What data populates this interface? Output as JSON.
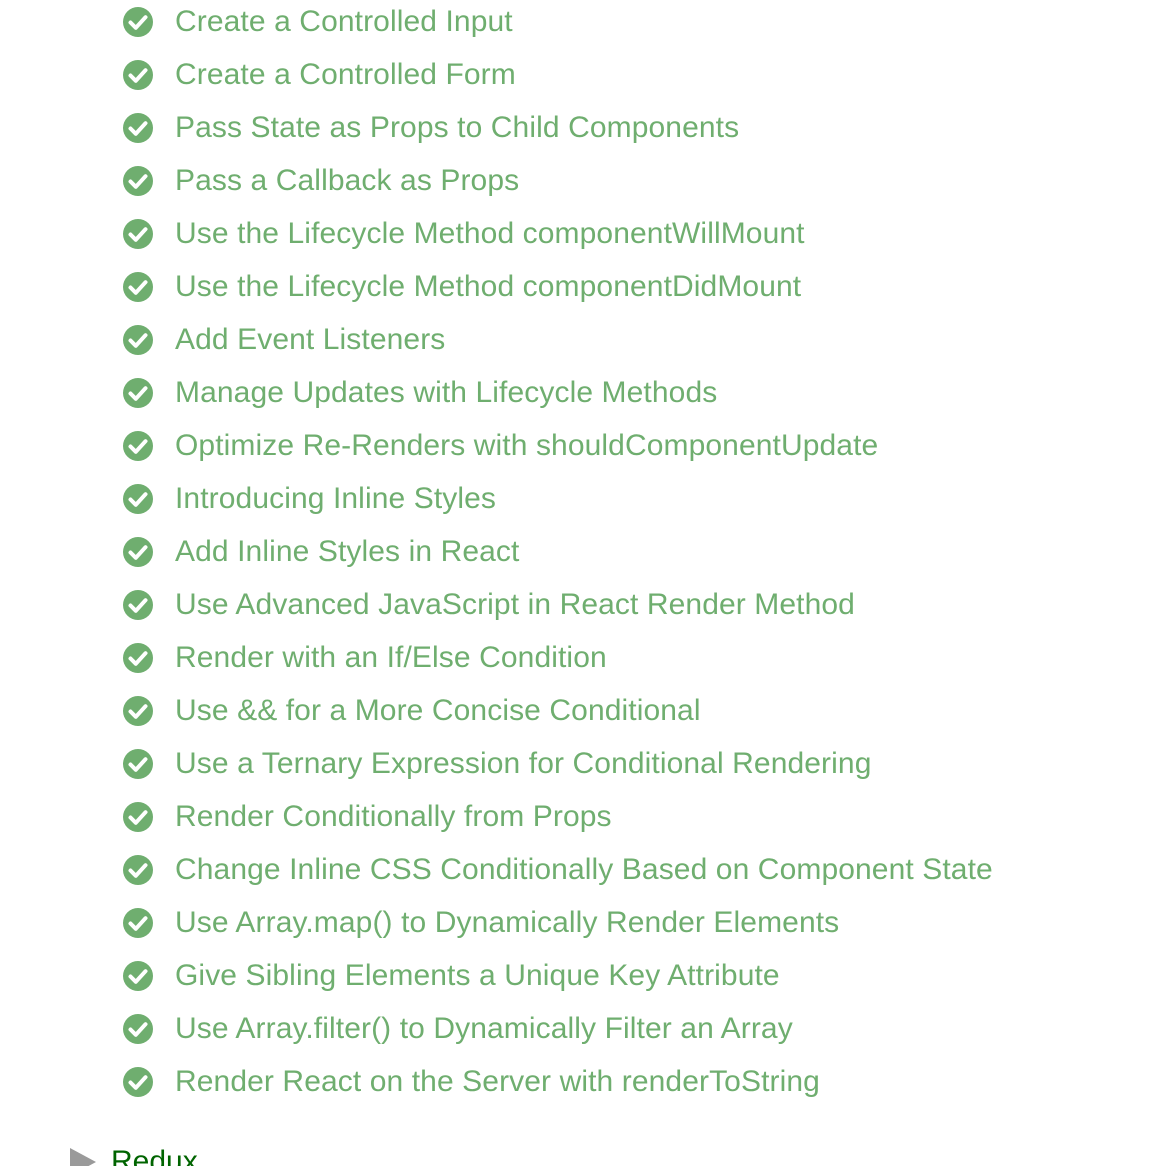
{
  "accent_color": "#6fae6f",
  "section_color": "#006400",
  "lessons": [
    {
      "label": "Create a Controlled Input",
      "icon": "check-circle-icon"
    },
    {
      "label": "Create a Controlled Form",
      "icon": "check-circle-icon"
    },
    {
      "label": "Pass State as Props to Child Components",
      "icon": "check-circle-icon"
    },
    {
      "label": "Pass a Callback as Props",
      "icon": "check-circle-icon"
    },
    {
      "label": "Use the Lifecycle Method componentWillMount",
      "icon": "check-circle-icon"
    },
    {
      "label": "Use the Lifecycle Method componentDidMount",
      "icon": "check-circle-icon"
    },
    {
      "label": "Add Event Listeners",
      "icon": "check-circle-icon"
    },
    {
      "label": "Manage Updates with Lifecycle Methods",
      "icon": "check-circle-icon"
    },
    {
      "label": "Optimize Re-Renders with shouldComponentUpdate",
      "icon": "check-circle-icon"
    },
    {
      "label": "Introducing Inline Styles",
      "icon": "check-circle-icon"
    },
    {
      "label": "Add Inline Styles in React",
      "icon": "check-circle-icon"
    },
    {
      "label": "Use Advanced JavaScript in React Render Method",
      "icon": "check-circle-icon"
    },
    {
      "label": "Render with an If/Else Condition",
      "icon": "check-circle-icon"
    },
    {
      "label": "Use && for a More Concise Conditional",
      "icon": "check-circle-icon"
    },
    {
      "label": "Use a Ternary Expression for Conditional Rendering",
      "icon": "check-circle-icon"
    },
    {
      "label": "Render Conditionally from Props",
      "icon": "check-circle-icon"
    },
    {
      "label": "Change Inline CSS Conditionally Based on Component State",
      "icon": "check-circle-icon"
    },
    {
      "label": "Use Array.map() to Dynamically Render Elements",
      "icon": "check-circle-icon"
    },
    {
      "label": "Give Sibling Elements a Unique Key Attribute",
      "icon": "check-circle-icon"
    },
    {
      "label": "Use Array.filter() to Dynamically Filter an Array",
      "icon": "check-circle-icon"
    },
    {
      "label": "Render React on the Server with renderToString",
      "icon": "check-circle-icon"
    }
  ],
  "next_section": {
    "label": "Redux",
    "icon": "collapsed-triangle-icon"
  }
}
